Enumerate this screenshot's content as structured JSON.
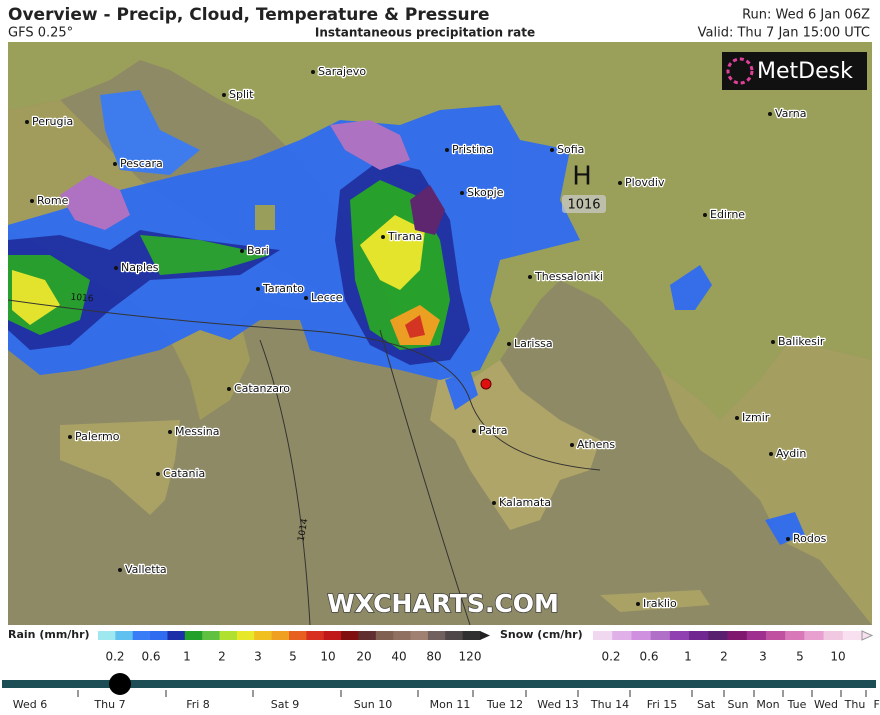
{
  "header": {
    "title": "Overview - Precip, Cloud, Temperature & Pressure",
    "model": "GFS 0.25°",
    "subtitle": "Instantaneous precipitation rate",
    "run": "Run: Wed 6 Jan 06Z",
    "valid": "Valid: Thu 7 Jan 15:00 UTC"
  },
  "logo": "MetDesk",
  "watermark": "WXCHARTS.COM",
  "pressure": {
    "high": "H",
    "high_value": "1016",
    "isobars": [
      "1016",
      "1014"
    ]
  },
  "cities": [
    "Sarajevo",
    "Split",
    "Perugia",
    "Pescara",
    "Rome",
    "Naples",
    "Bari",
    "Taranto",
    "Lecce",
    "Tirana",
    "Pristina",
    "Skopje",
    "Sofia",
    "Plovdiv",
    "Edirne",
    "Varna",
    "Thessaloniki",
    "Larissa",
    "Catanzaro",
    "Palermo",
    "Messina",
    "Catania",
    "Patra",
    "Athens",
    "Izmir",
    "Aydin",
    "Balikesir",
    "Kalamata",
    "Valletta",
    "Iraklio",
    "Rodos"
  ],
  "legend": {
    "rain": {
      "label": "Rain (mm/hr)",
      "ticks": [
        0.2,
        0.6,
        1,
        2,
        3,
        5,
        10,
        20,
        40,
        80,
        120
      ]
    },
    "snow": {
      "label": "Snow (cm/hr)",
      "ticks": [
        0.2,
        0.6,
        1,
        2,
        3,
        5,
        10
      ]
    }
  },
  "timeline": [
    "Wed 6",
    "Thu 7",
    "Fri 8",
    "Sat 9",
    "Sun 10",
    "Mon 11",
    "Tue 12",
    "Wed 13",
    "Thu 14",
    "Fri 15",
    "Sat",
    "Sun",
    "Mon",
    "Tue",
    "Wed",
    "Thu",
    "Fri"
  ]
}
